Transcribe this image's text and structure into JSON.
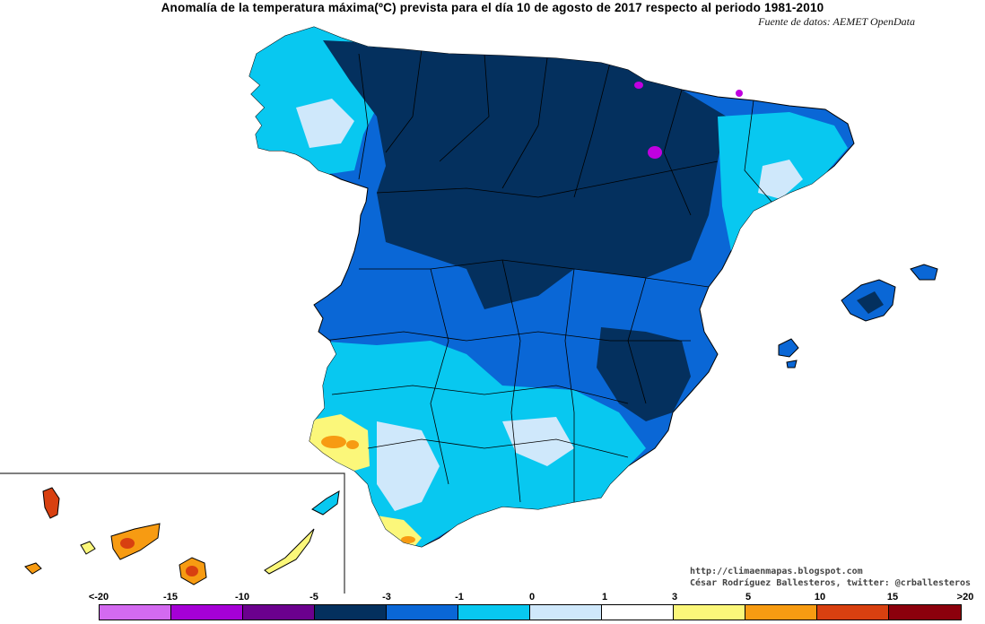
{
  "header": {
    "title": "Anomalía de la temperatura máxima(ºC) prevista para el día 10 de agosto de 2017 respecto al periodo 1981-2010",
    "source": "Fuente de datos: AEMET OpenData"
  },
  "credits": {
    "url": "http://climaenmapas.blogspot.com",
    "author": "César Rodríguez Ballesteros, twitter: @crballesteros"
  },
  "legend": {
    "ticks": [
      "<-20",
      "-15",
      "-10",
      "-5",
      "-3",
      "-1",
      "0",
      "1",
      "3",
      "5",
      "10",
      "15",
      ">20"
    ],
    "colors": [
      "#d36af0",
      "#a500d6",
      "#6b008e",
      "#04305e",
      "#0a67d6",
      "#08c8f0",
      "#cfe8fb",
      "#ffffff",
      "#fbf77a",
      "#f79b12",
      "#d84010",
      "#8c000c",
      "#6b3a08"
    ]
  },
  "map": {
    "colors": {
      "very_cold": "#04305e",
      "cold": "#0a67d6",
      "cool": "#08c8f0",
      "slightly_cool": "#cfe8fb",
      "neutral": "#ffffff",
      "warm": "#fbf77a",
      "hot": "#f79b12",
      "very_hot": "#d84010",
      "anomaly_purple": "#c000e0"
    }
  }
}
